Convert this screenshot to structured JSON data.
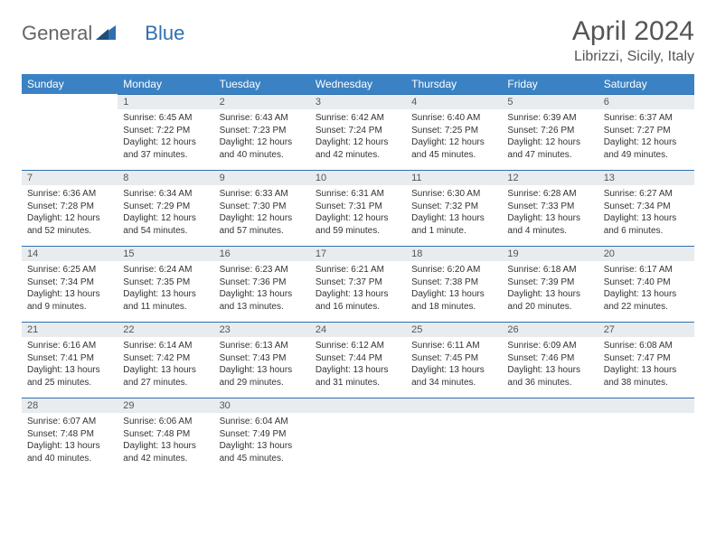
{
  "logo": {
    "text_general": "General",
    "text_blue": "Blue"
  },
  "title": "April 2024",
  "location": "Librizzi, Sicily, Italy",
  "colors": {
    "header_bg": "#3b82c4",
    "header_text": "#ffffff",
    "daynum_bg": "#e9ecef",
    "rule": "#2f6fb0",
    "body_text": "#333333",
    "title_text": "#555555",
    "logo_blue": "#2f6fb0"
  },
  "day_headers": [
    "Sunday",
    "Monday",
    "Tuesday",
    "Wednesday",
    "Thursday",
    "Friday",
    "Saturday"
  ],
  "layout": {
    "first_weekday_index": 1,
    "days_in_month": 30
  },
  "days": {
    "1": {
      "sunrise": "6:45 AM",
      "sunset": "7:22 PM",
      "daylight": "12 hours and 37 minutes."
    },
    "2": {
      "sunrise": "6:43 AM",
      "sunset": "7:23 PM",
      "daylight": "12 hours and 40 minutes."
    },
    "3": {
      "sunrise": "6:42 AM",
      "sunset": "7:24 PM",
      "daylight": "12 hours and 42 minutes."
    },
    "4": {
      "sunrise": "6:40 AM",
      "sunset": "7:25 PM",
      "daylight": "12 hours and 45 minutes."
    },
    "5": {
      "sunrise": "6:39 AM",
      "sunset": "7:26 PM",
      "daylight": "12 hours and 47 minutes."
    },
    "6": {
      "sunrise": "6:37 AM",
      "sunset": "7:27 PM",
      "daylight": "12 hours and 49 minutes."
    },
    "7": {
      "sunrise": "6:36 AM",
      "sunset": "7:28 PM",
      "daylight": "12 hours and 52 minutes."
    },
    "8": {
      "sunrise": "6:34 AM",
      "sunset": "7:29 PM",
      "daylight": "12 hours and 54 minutes."
    },
    "9": {
      "sunrise": "6:33 AM",
      "sunset": "7:30 PM",
      "daylight": "12 hours and 57 minutes."
    },
    "10": {
      "sunrise": "6:31 AM",
      "sunset": "7:31 PM",
      "daylight": "12 hours and 59 minutes."
    },
    "11": {
      "sunrise": "6:30 AM",
      "sunset": "7:32 PM",
      "daylight": "13 hours and 1 minute."
    },
    "12": {
      "sunrise": "6:28 AM",
      "sunset": "7:33 PM",
      "daylight": "13 hours and 4 minutes."
    },
    "13": {
      "sunrise": "6:27 AM",
      "sunset": "7:34 PM",
      "daylight": "13 hours and 6 minutes."
    },
    "14": {
      "sunrise": "6:25 AM",
      "sunset": "7:34 PM",
      "daylight": "13 hours and 9 minutes."
    },
    "15": {
      "sunrise": "6:24 AM",
      "sunset": "7:35 PM",
      "daylight": "13 hours and 11 minutes."
    },
    "16": {
      "sunrise": "6:23 AM",
      "sunset": "7:36 PM",
      "daylight": "13 hours and 13 minutes."
    },
    "17": {
      "sunrise": "6:21 AM",
      "sunset": "7:37 PM",
      "daylight": "13 hours and 16 minutes."
    },
    "18": {
      "sunrise": "6:20 AM",
      "sunset": "7:38 PM",
      "daylight": "13 hours and 18 minutes."
    },
    "19": {
      "sunrise": "6:18 AM",
      "sunset": "7:39 PM",
      "daylight": "13 hours and 20 minutes."
    },
    "20": {
      "sunrise": "6:17 AM",
      "sunset": "7:40 PM",
      "daylight": "13 hours and 22 minutes."
    },
    "21": {
      "sunrise": "6:16 AM",
      "sunset": "7:41 PM",
      "daylight": "13 hours and 25 minutes."
    },
    "22": {
      "sunrise": "6:14 AM",
      "sunset": "7:42 PM",
      "daylight": "13 hours and 27 minutes."
    },
    "23": {
      "sunrise": "6:13 AM",
      "sunset": "7:43 PM",
      "daylight": "13 hours and 29 minutes."
    },
    "24": {
      "sunrise": "6:12 AM",
      "sunset": "7:44 PM",
      "daylight": "13 hours and 31 minutes."
    },
    "25": {
      "sunrise": "6:11 AM",
      "sunset": "7:45 PM",
      "daylight": "13 hours and 34 minutes."
    },
    "26": {
      "sunrise": "6:09 AM",
      "sunset": "7:46 PM",
      "daylight": "13 hours and 36 minutes."
    },
    "27": {
      "sunrise": "6:08 AM",
      "sunset": "7:47 PM",
      "daylight": "13 hours and 38 minutes."
    },
    "28": {
      "sunrise": "6:07 AM",
      "sunset": "7:48 PM",
      "daylight": "13 hours and 40 minutes."
    },
    "29": {
      "sunrise": "6:06 AM",
      "sunset": "7:48 PM",
      "daylight": "13 hours and 42 minutes."
    },
    "30": {
      "sunrise": "6:04 AM",
      "sunset": "7:49 PM",
      "daylight": "13 hours and 45 minutes."
    }
  },
  "labels": {
    "sunrise": "Sunrise: ",
    "sunset": "Sunset: ",
    "daylight": "Daylight: "
  }
}
